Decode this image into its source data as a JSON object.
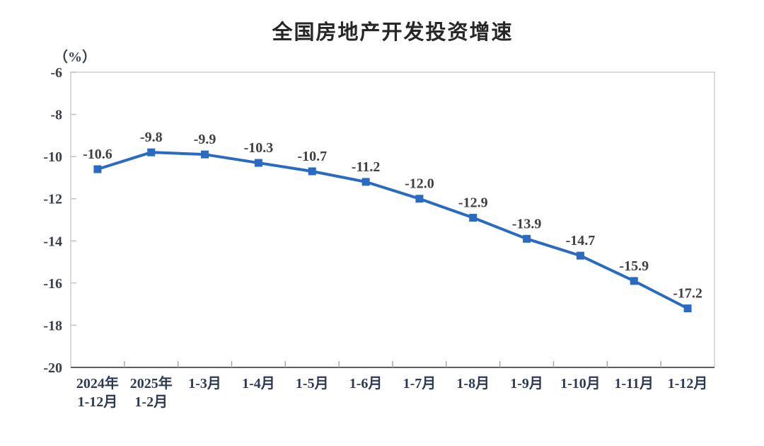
{
  "chart_data": {
    "type": "line",
    "title": "全国房地产开发投资增速",
    "unit_label": "（%）",
    "legend": "none",
    "grid": false,
    "categories": [
      [
        "2024年",
        "1-12月"
      ],
      [
        "2025年",
        "1-2月"
      ],
      [
        "1-3月"
      ],
      [
        "1-4月"
      ],
      [
        "1-5月"
      ],
      [
        "1-6月"
      ],
      [
        "1-7月"
      ],
      [
        "1-8月"
      ],
      [
        "1-9月"
      ],
      [
        "1-10月"
      ],
      [
        "1-11月"
      ],
      [
        "1-12月"
      ]
    ],
    "values": [
      -10.6,
      -9.8,
      -9.9,
      -10.3,
      -10.7,
      -11.2,
      -12.0,
      -12.9,
      -13.9,
      -14.7,
      -15.9,
      -17.2
    ],
    "data_labels": [
      "-10.6",
      "-9.8",
      "-9.9",
      "-10.3",
      "-10.7",
      "-11.2",
      "-12.0",
      "-12.9",
      "-13.9",
      "-14.7",
      "-15.9",
      "-17.2"
    ],
    "ylim": [
      -20,
      -6
    ],
    "y_ticks": [
      -6,
      -8,
      -10,
      -12,
      -14,
      -16,
      -18,
      -20
    ],
    "marker": "square",
    "colors": {
      "line": "#2b6ac3",
      "marker": "#2b6ac3",
      "data_label": "#404040",
      "y_tick_label": "#3a3f4a",
      "x_tick_label": "#2e3a55",
      "title": "#272727",
      "box_border": "#d2d2d2",
      "bottom_axis": "#5f5f5f",
      "y_tick_mark": "#c0c0c0",
      "x_tick_mark": "#a3a3a3"
    }
  }
}
